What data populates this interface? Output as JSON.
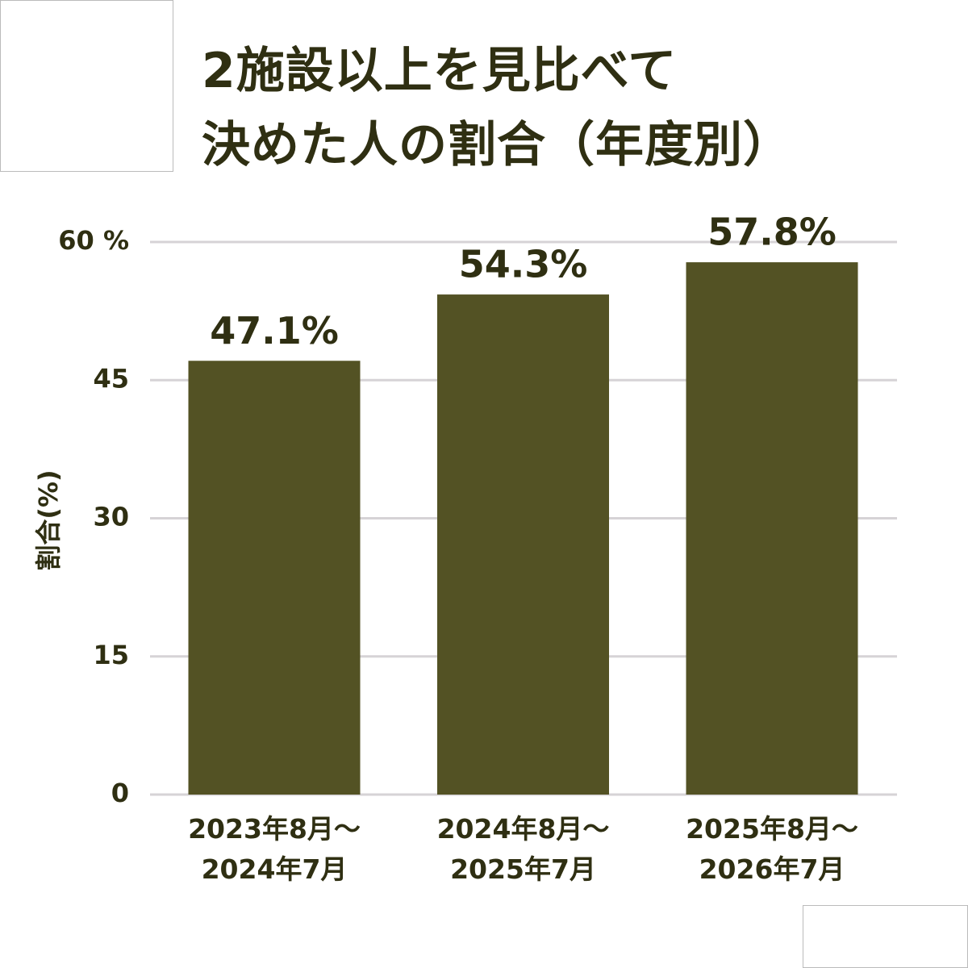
{
  "chart_data": {
    "type": "bar",
    "title": "2施設以上を見比べて\n決めた人の割合（年度別）",
    "y_label": "割合(%)",
    "categories": [
      "2023年8月～\n2024年7月",
      "2024年8月～\n2025年7月",
      "2025年8月～\n2026年7月"
    ],
    "values": [
      47.1,
      54.3,
      57.8
    ],
    "value_labels": [
      "47.1%",
      "54.3%",
      "57.8%"
    ],
    "color": "#535224",
    "ylim": [
      0,
      60
    ],
    "yticks": [
      0,
      15,
      30,
      45,
      {
        "value": 60,
        "label": "60 %"
      }
    ],
    "grid": true
  }
}
